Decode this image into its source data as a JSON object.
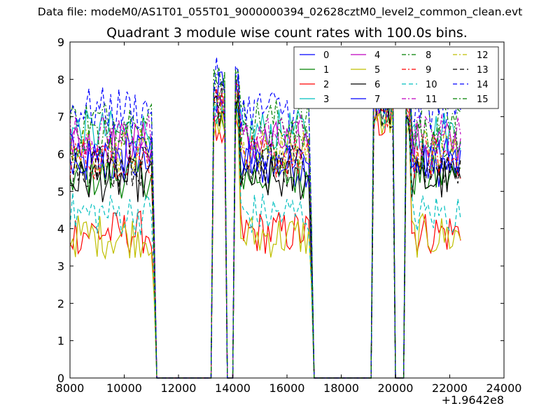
{
  "suptitle": "Data file: modeM0/AS1T01_055T01_9000000394_02628cztM0_level2_common_clean.evt",
  "chart_data": {
    "type": "line",
    "title": "Quadrant 3 module wise count rates with 100.0s bins.",
    "xlabel": "",
    "ylabel": "",
    "x_offset_label": "+1.9642e8",
    "xlim": [
      8000,
      24000
    ],
    "ylim": [
      0,
      9
    ],
    "xticks": [
      8000,
      10000,
      12000,
      14000,
      16000,
      18000,
      20000,
      22000,
      24000
    ],
    "yticks": [
      0,
      1,
      2,
      3,
      4,
      5,
      6,
      7,
      8,
      9
    ],
    "grid": false,
    "legend_position": "top-right",
    "legend_columns": 4,
    "x_range_data": [
      8000,
      22400
    ],
    "bin_width": 100,
    "gaps_zero": [
      [
        11200,
        13200
      ],
      [
        13800,
        14000
      ],
      [
        17000,
        19100
      ],
      [
        20000,
        20300
      ]
    ],
    "series": [
      {
        "name": "0",
        "color": "#0000ff",
        "dash": "solid",
        "level": 5.7,
        "spike": 8.0
      },
      {
        "name": "1",
        "color": "#008000",
        "dash": "solid",
        "level": 5.4,
        "spike": 7.7
      },
      {
        "name": "2",
        "color": "#ff0000",
        "dash": "solid",
        "level": 3.9,
        "spike": 7.5
      },
      {
        "name": "3",
        "color": "#00bfbf",
        "dash": "solid",
        "level": 6.6,
        "spike": 8.3
      },
      {
        "name": "4",
        "color": "#bf00bf",
        "dash": "solid",
        "level": 6.3,
        "spike": 8.1
      },
      {
        "name": "5",
        "color": "#bfbf00",
        "dash": "solid",
        "level": 3.8,
        "spike": 7.6
      },
      {
        "name": "6",
        "color": "#000000",
        "dash": "solid",
        "level": 5.3,
        "spike": 7.9
      },
      {
        "name": "7",
        "color": "#0000ff",
        "dash": "solid",
        "level": 6.0,
        "spike": 8.2
      },
      {
        "name": "8",
        "color": "#008000",
        "dash": "dashdot",
        "level": 6.9,
        "spike": 8.4
      },
      {
        "name": "9",
        "color": "#ff0000",
        "dash": "dashdot",
        "level": 5.9,
        "spike": 7.9
      },
      {
        "name": "10",
        "color": "#00bfbf",
        "dash": "dashed",
        "level": 4.4,
        "spike": 7.8
      },
      {
        "name": "11",
        "color": "#bf00bf",
        "dash": "dashdot",
        "level": 6.5,
        "spike": 8.1
      },
      {
        "name": "12",
        "color": "#bfbf00",
        "dash": "dashdot",
        "level": 6.1,
        "spike": 8.0
      },
      {
        "name": "13",
        "color": "#000000",
        "dash": "dashed",
        "level": 5.7,
        "spike": 7.9
      },
      {
        "name": "14",
        "color": "#0000ff",
        "dash": "dashed",
        "level": 7.2,
        "spike": 8.8
      },
      {
        "name": "15",
        "color": "#008000",
        "dash": "dashdot",
        "level": 6.4,
        "spike": 8.6
      }
    ]
  }
}
